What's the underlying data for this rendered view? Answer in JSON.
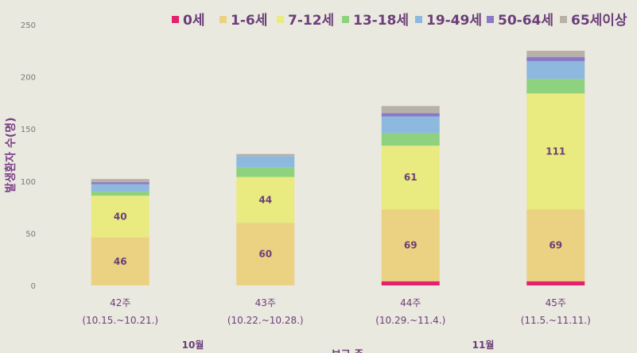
{
  "chart_data": {
    "type": "bar",
    "stacked": true,
    "title": "",
    "ylabel": "발생환자 수(명)",
    "xlabel": "보고 주",
    "ylim": [
      0,
      250
    ],
    "yticks": [
      0,
      50,
      100,
      150,
      200,
      250
    ],
    "grid": false,
    "legend_position": "top-right",
    "categories": [
      "42주",
      "43주",
      "44주",
      "45주"
    ],
    "category_sublabels": [
      "(10.15.~10.21.)",
      "(10.22.~10.28.)",
      "(10.29.~11.4.)",
      "(11.5.~11.11.)"
    ],
    "month_labels": [
      {
        "label": "10월",
        "categories": [
          "42주",
          "43주"
        ]
      },
      {
        "label": "11월",
        "categories": [
          "44주",
          "45주"
        ]
      }
    ],
    "series": [
      {
        "name": "0세",
        "color": "#E5206E",
        "values": [
          0,
          0,
          4,
          4
        ]
      },
      {
        "name": "1-6세",
        "color": "#EBD182",
        "values": [
          46,
          60,
          69,
          69
        ]
      },
      {
        "name": "7-12세",
        "color": "#E9EA80",
        "values": [
          40,
          44,
          61,
          111
        ]
      },
      {
        "name": "13-18세",
        "color": "#8ED17F",
        "values": [
          4,
          9,
          12,
          14
        ]
      },
      {
        "name": "19-49세",
        "color": "#8EB9DE",
        "values": [
          7,
          11,
          16,
          17
        ]
      },
      {
        "name": "50-64세",
        "color": "#8A79C9",
        "values": [
          2,
          0,
          3,
          4
        ]
      },
      {
        "name": "65세이상",
        "color": "#B7B1A8",
        "values": [
          3,
          2,
          7,
          6
        ]
      }
    ],
    "data_labels": [
      {
        "series": "1-6세",
        "values": [
          "46",
          "60",
          "69",
          "69"
        ]
      },
      {
        "series": "7-12세",
        "values": [
          "40",
          "44",
          "61",
          "111"
        ]
      }
    ]
  }
}
